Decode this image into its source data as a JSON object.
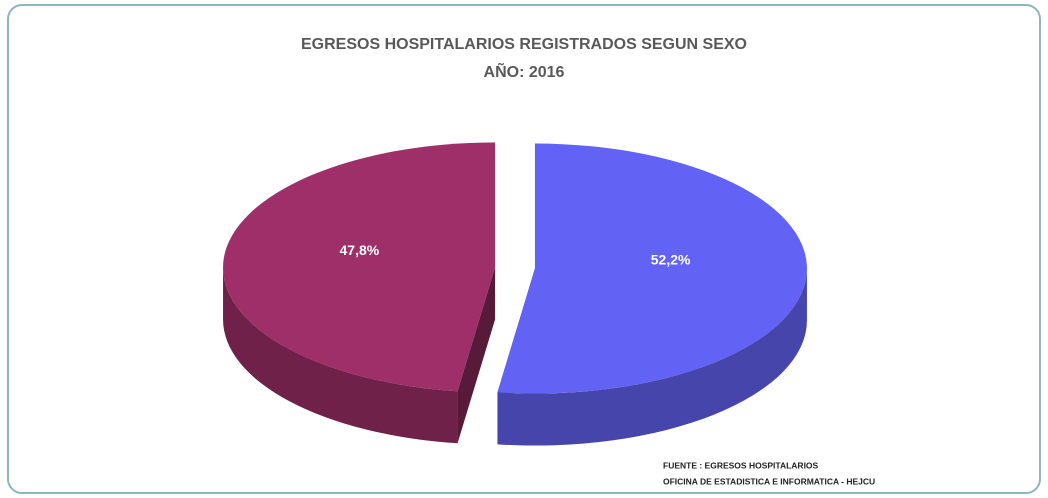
{
  "chart_data": {
    "type": "pie",
    "title": "EGRESOS HOSPITALARIOS REGISTRADOS SEGUN SEXO",
    "subtitle": "AÑO: 2016",
    "values": [
      52.2,
      47.8
    ],
    "value_labels": [
      "52,2%",
      "47,8%"
    ],
    "colors": [
      "#6262f5",
      "#9e2f68"
    ],
    "source": [
      "FUENTE : EGRESOS HOSPITALARIOS",
      "OFICINA DE ESTADISTICA E INFORMATICA - HEJCU"
    ]
  }
}
